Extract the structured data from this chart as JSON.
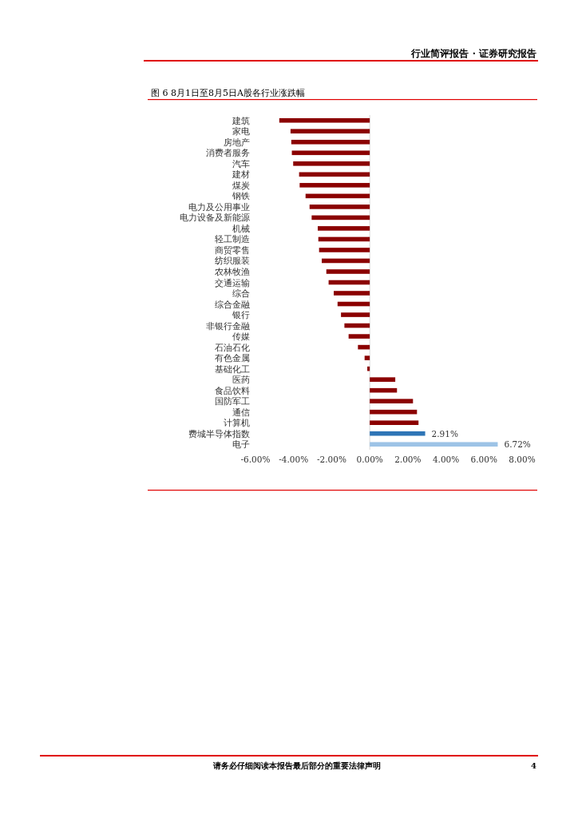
{
  "chart_data": {
    "type": "bar",
    "orientation": "horizontal",
    "title": "图 6 8月1日至8月5日A股各行业涨跌幅",
    "categories": [
      "建筑",
      "家电",
      "房地产",
      "消费者服务",
      "汽车",
      "建材",
      "煤炭",
      "钢铁",
      "电力及公用事业",
      "电力设备及新能源",
      "机械",
      "轻工制造",
      "商贸零售",
      "纺织服装",
      "农林牧渔",
      "交通运输",
      "综合",
      "综合金融",
      "银行",
      "非银行金融",
      "传媒",
      "石油石化",
      "有色金属",
      "基础化工",
      "医药",
      "食品饮料",
      "国防军工",
      "通信",
      "计算机",
      "费城半导体指数",
      "电子"
    ],
    "values": [
      -4.75,
      -4.16,
      -4.12,
      -4.09,
      -4.02,
      -3.71,
      -3.68,
      -3.37,
      -3.16,
      -3.05,
      -2.73,
      -2.7,
      -2.66,
      -2.52,
      -2.28,
      -2.16,
      -1.89,
      -1.69,
      -1.51,
      -1.33,
      -1.11,
      -0.62,
      -0.27,
      -0.13,
      1.34,
      1.43,
      2.27,
      2.48,
      2.56,
      2.91,
      6.72
    ],
    "colors": [
      "#8b0000",
      "#8b0000",
      "#8b0000",
      "#8b0000",
      "#8b0000",
      "#8b0000",
      "#8b0000",
      "#8b0000",
      "#8b0000",
      "#8b0000",
      "#8b0000",
      "#8b0000",
      "#8b0000",
      "#8b0000",
      "#8b0000",
      "#8b0000",
      "#8b0000",
      "#8b0000",
      "#8b0000",
      "#8b0000",
      "#8b0000",
      "#8b0000",
      "#8b0000",
      "#8b0000",
      "#8b0000",
      "#8b0000",
      "#8b0000",
      "#8b0000",
      "#8b0000",
      "#2e75b6",
      "#9dc3e6"
    ],
    "value_labels": [
      null,
      null,
      null,
      null,
      null,
      null,
      null,
      null,
      null,
      null,
      null,
      null,
      null,
      null,
      null,
      null,
      null,
      null,
      null,
      null,
      null,
      null,
      null,
      null,
      null,
      null,
      null,
      null,
      null,
      "2.91%",
      "6.72%"
    ],
    "xlim": [
      -6,
      8
    ],
    "xticks": [
      {
        "value": -6,
        "label": "-6.00%"
      },
      {
        "value": -4,
        "label": "-4.00%"
      },
      {
        "value": -2,
        "label": "-2.00%"
      },
      {
        "value": 0,
        "label": "0.00%"
      },
      {
        "value": 2,
        "label": "2.00%"
      },
      {
        "value": 4,
        "label": "4.00%"
      },
      {
        "value": 6,
        "label": "6.00%"
      },
      {
        "value": 8,
        "label": "8.00%"
      }
    ],
    "annotations": [
      "行业简评报告 · 证券研究报告",
      "请务必仔细阅读本报告最后部分的重要法律声明",
      "4"
    ]
  }
}
